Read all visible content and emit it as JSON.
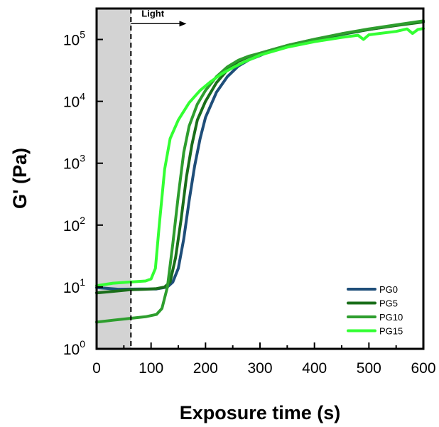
{
  "chart_data": {
    "type": "line",
    "xlabel": "Exposure time (s)",
    "ylabel": "G' (Pa)",
    "xlim": [
      0,
      600
    ],
    "ylim": [
      1,
      316228
    ],
    "yscale": "log",
    "x_ticks": [
      0,
      100,
      200,
      300,
      400,
      500,
      600
    ],
    "y_ticks": [
      {
        "base": "10",
        "exp": "0",
        "value": 1
      },
      {
        "base": "10",
        "exp": "1",
        "value": 10
      },
      {
        "base": "10",
        "exp": "2",
        "value": 100
      },
      {
        "base": "10",
        "exp": "3",
        "value": 1000
      },
      {
        "base": "10",
        "exp": "4",
        "value": 10000
      },
      {
        "base": "10",
        "exp": "5",
        "value": 100000
      }
    ],
    "shaded_region": {
      "x": [
        0,
        63
      ],
      "color": "#d3d3d3"
    },
    "vline": {
      "x": 63,
      "style": "dashed"
    },
    "annotation": {
      "text": "Light",
      "x_start": 63,
      "x_end": 165,
      "y": 180000
    },
    "legend_position": "bottom-right",
    "grid": false,
    "series": [
      {
        "name": "PG0",
        "color": "#1f4e79",
        "points": [
          [
            0,
            9.8
          ],
          [
            40,
            9.2
          ],
          [
            80,
            9.3
          ],
          [
            110,
            9.3
          ],
          [
            130,
            10
          ],
          [
            140,
            12
          ],
          [
            150,
            20
          ],
          [
            160,
            60
          ],
          [
            170,
            250
          ],
          [
            180,
            900
          ],
          [
            190,
            2500
          ],
          [
            200,
            5500
          ],
          [
            220,
            14000
          ],
          [
            240,
            25000
          ],
          [
            260,
            37000
          ],
          [
            280,
            47000
          ],
          [
            300,
            55000
          ],
          [
            320,
            65000
          ],
          [
            350,
            78000
          ],
          [
            400,
            98000
          ],
          [
            450,
            120000
          ],
          [
            500,
            145000
          ],
          [
            550,
            170000
          ],
          [
            600,
            198000
          ]
        ]
      },
      {
        "name": "PG5",
        "color": "#1a6e1a",
        "points": [
          [
            0,
            8
          ],
          [
            30,
            8.5
          ],
          [
            60,
            9
          ],
          [
            90,
            9.2
          ],
          [
            110,
            9.4
          ],
          [
            125,
            10
          ],
          [
            135,
            12
          ],
          [
            145,
            30
          ],
          [
            155,
            120
          ],
          [
            165,
            600
          ],
          [
            175,
            2000
          ],
          [
            185,
            5000
          ],
          [
            200,
            10000
          ],
          [
            220,
            20000
          ],
          [
            240,
            32000
          ],
          [
            260,
            44000
          ],
          [
            280,
            53000
          ],
          [
            300,
            60000
          ],
          [
            350,
            80000
          ],
          [
            400,
            100000
          ],
          [
            450,
            122000
          ],
          [
            500,
            145000
          ],
          [
            550,
            168000
          ],
          [
            600,
            192000
          ]
        ]
      },
      {
        "name": "PG10",
        "color": "#2e9e2e",
        "points": [
          [
            0,
            2.7
          ],
          [
            30,
            2.9
          ],
          [
            60,
            3.1
          ],
          [
            90,
            3.3
          ],
          [
            110,
            3.6
          ],
          [
            120,
            4.5
          ],
          [
            130,
            10
          ],
          [
            140,
            50
          ],
          [
            150,
            300
          ],
          [
            160,
            1500
          ],
          [
            170,
            4000
          ],
          [
            185,
            9000
          ],
          [
            200,
            15000
          ],
          [
            220,
            25000
          ],
          [
            240,
            36000
          ],
          [
            260,
            46000
          ],
          [
            280,
            54000
          ],
          [
            300,
            60000
          ],
          [
            350,
            80000
          ],
          [
            400,
            101000
          ],
          [
            450,
            124000
          ],
          [
            500,
            148000
          ],
          [
            550,
            172000
          ],
          [
            600,
            200000
          ]
        ]
      },
      {
        "name": "PG15",
        "color": "#33ff33",
        "points": [
          [
            0,
            10.5
          ],
          [
            30,
            11.5
          ],
          [
            60,
            12
          ],
          [
            90,
            12.5
          ],
          [
            100,
            13.5
          ],
          [
            108,
            20
          ],
          [
            115,
            100
          ],
          [
            125,
            800
          ],
          [
            135,
            2500
          ],
          [
            150,
            5000
          ],
          [
            170,
            9500
          ],
          [
            190,
            15000
          ],
          [
            210,
            21000
          ],
          [
            230,
            28000
          ],
          [
            250,
            35000
          ],
          [
            270,
            43000
          ],
          [
            290,
            51000
          ],
          [
            300,
            56000
          ],
          [
            350,
            75000
          ],
          [
            400,
            92000
          ],
          [
            450,
            108000
          ],
          [
            480,
            117000
          ],
          [
            490,
            100000
          ],
          [
            500,
            119000
          ],
          [
            550,
            135000
          ],
          [
            570,
            148000
          ],
          [
            580,
            125000
          ],
          [
            590,
            145000
          ],
          [
            600,
            150000
          ]
        ]
      }
    ]
  }
}
